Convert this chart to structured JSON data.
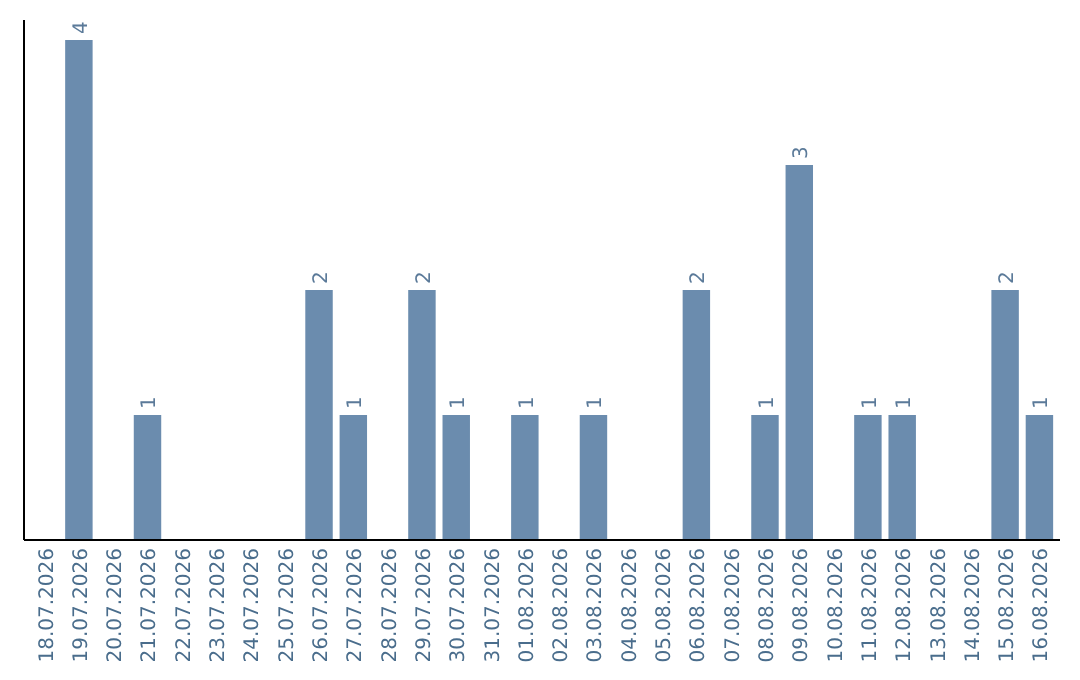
{
  "chart_data": {
    "type": "bar",
    "categories": [
      "18.07.2026",
      "19.07.2026",
      "20.07.2026",
      "21.07.2026",
      "22.07.2026",
      "23.07.2026",
      "24.07.2026",
      "25.07.2026",
      "26.07.2026",
      "27.07.2026",
      "28.07.2026",
      "29.07.2026",
      "30.07.2026",
      "31.07.2026",
      "01.08.2026",
      "02.08.2026",
      "03.08.2026",
      "04.08.2026",
      "05.08.2026",
      "06.08.2026",
      "07.08.2026",
      "08.08.2026",
      "09.08.2026",
      "10.08.2026",
      "11.08.2026",
      "12.08.2026",
      "13.08.2026",
      "14.08.2026",
      "15.08.2026",
      "16.08.2026"
    ],
    "values": [
      0,
      4,
      0,
      1,
      0,
      0,
      0,
      0,
      2,
      1,
      0,
      2,
      1,
      0,
      1,
      0,
      1,
      0,
      0,
      2,
      0,
      1,
      3,
      0,
      1,
      1,
      0,
      0,
      2,
      1
    ],
    "value_labels": [
      null,
      "4",
      null,
      "1",
      null,
      null,
      null,
      null,
      "2",
      "1",
      null,
      "2",
      "1",
      null,
      "1",
      null,
      "1",
      null,
      null,
      "2",
      null,
      "1",
      "3",
      null,
      "1",
      "1",
      null,
      null,
      "2",
      "1"
    ],
    "color": "#6b8cae",
    "ylim": [
      0,
      4.16
    ],
    "tick_labels": "x"
  }
}
